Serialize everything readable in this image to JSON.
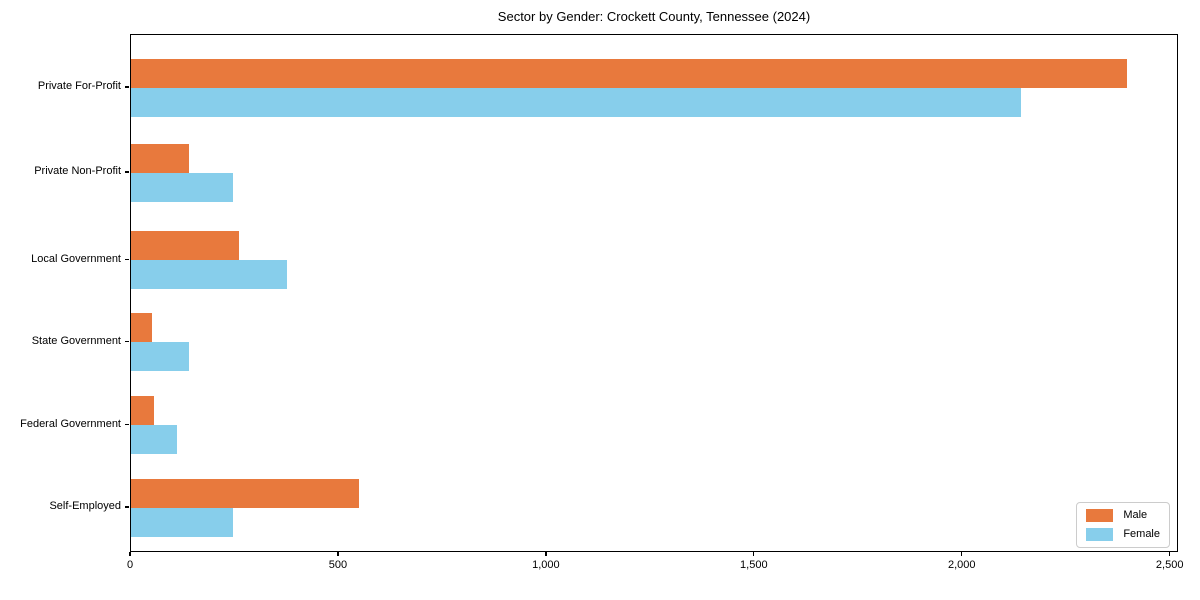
{
  "chart_data": {
    "type": "bar",
    "orientation": "horizontal",
    "title": "Sector by Gender: Crockett County, Tennessee (2024)",
    "categories": [
      "Private For-Profit",
      "Private Non-Profit",
      "Local Government",
      "State Government",
      "Federal Government",
      "Self-Employed"
    ],
    "series": [
      {
        "name": "Male",
        "color": "#E8793D",
        "values": [
          2400,
          140,
          260,
          50,
          55,
          550
        ]
      },
      {
        "name": "Female",
        "color": "#87CEEB",
        "values": [
          2145,
          245,
          375,
          140,
          110,
          245
        ]
      }
    ],
    "xlabel": "",
    "ylabel": "",
    "xlim": [
      0,
      2520
    ],
    "xticks": [
      0,
      500,
      1000,
      1500,
      2000,
      2500
    ],
    "xtick_labels": [
      "0",
      "500",
      "1,000",
      "1,500",
      "2,000",
      "2,500"
    ],
    "grid": false,
    "plot_background": "#ffffff",
    "frame_color": "#000000",
    "legend": {
      "position": "lower right",
      "entries": [
        "Male",
        "Female"
      ]
    }
  }
}
